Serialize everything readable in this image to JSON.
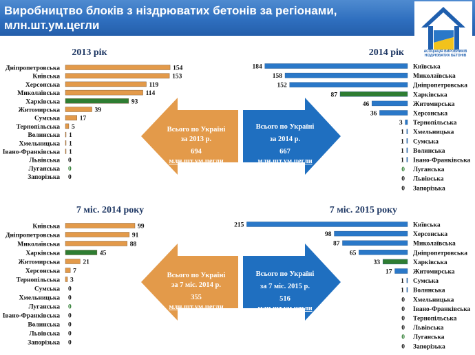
{
  "header": {
    "title": "Виробництво блоків з ніздрюватих бетонів за регіонами, млн.шт.ум.цегли"
  },
  "logo": {
    "text": "АСОЦІАЦІЯ ВИРОБНИКІВ НІЗДРЮВАТИХ БЕТОНІВ"
  },
  "colors": {
    "orange": "#e39a4a",
    "blue": "#2a78c8",
    "green": "#2e7d32",
    "navy": "#1f3864"
  },
  "arrows": {
    "a2013": {
      "line1": "Всього по Україні",
      "line2": "за 2013 р.",
      "value": "694",
      "unit": "млн.шт.ум.цегли"
    },
    "a2014": {
      "line1": "Всього по Україні",
      "line2": "за 2014 р.",
      "value": "667",
      "unit": "млн.шт.ум.цегли"
    },
    "a7m2014": {
      "line1": "Всього по Україні",
      "line2": "за 7 міс. 2014 р.",
      "value": "355",
      "unit": "млн.шт.ум.цегли"
    },
    "a7m2015": {
      "line1": "Всього по Україні",
      "line2": "за 7 міс. 2015 р.",
      "value": "516",
      "unit": "млн.шт.ум.цегли"
    }
  },
  "chart_data": [
    {
      "type": "bar",
      "title": "2013 рік",
      "orientation": "horizontal",
      "color": "#e39a4a",
      "highlight": {
        "Харківська": "#2e7d32"
      },
      "categories": [
        "Дніпропетровська",
        "Київська",
        "Херсонська",
        "Миколаївська",
        "Харківська",
        "Житомирська",
        "Сумська",
        "Тернопільська",
        "Волинська",
        "Хмельницька",
        "Івано-Франківська",
        "Львівська",
        "Луганська",
        "Запорізька"
      ],
      "values": [
        154,
        153,
        119,
        114,
        93,
        39,
        17,
        5,
        1,
        1,
        1,
        0,
        0,
        0
      ],
      "xlim": [
        0,
        160
      ]
    },
    {
      "type": "bar",
      "title": "2014 рік",
      "orientation": "horizontal-reversed",
      "color": "#2a78c8",
      "highlight": {
        "Харківська": "#2e7d32"
      },
      "categories": [
        "Київська",
        "Миколаївська",
        "Дніпропетровська",
        "Харківська",
        "Житомирська",
        "Херсонська",
        "Тернопільська",
        "Хмельницька",
        "Сумська",
        "Волинська",
        "Івано-Франківська",
        "Луганська",
        "Львівська",
        "Запорізька"
      ],
      "values": [
        184,
        158,
        152,
        87,
        46,
        36,
        3,
        1,
        1,
        1,
        1,
        0,
        0,
        0
      ],
      "xlim": [
        0,
        190
      ]
    },
    {
      "type": "bar",
      "title": "7 міс. 2014 року",
      "orientation": "horizontal",
      "color": "#e39a4a",
      "highlight": {
        "Харківська": "#2e7d32"
      },
      "categories": [
        "Київська",
        "Дніпропетровська",
        "Миколаївська",
        "Харківська",
        "Житомирська",
        "Херсонська",
        "Тернопільська",
        "Сумська",
        "Хмельницька",
        "Луганська",
        "Івано-Франківська",
        "Волинська",
        "Львівська",
        "Запорізька"
      ],
      "values": [
        99,
        91,
        88,
        45,
        21,
        7,
        3,
        0,
        0,
        0,
        0,
        0,
        0,
        0
      ],
      "xlim": [
        0,
        100
      ]
    },
    {
      "type": "bar",
      "title": "7 міс. 2015 року",
      "orientation": "horizontal-reversed",
      "color": "#2a78c8",
      "highlight": {
        "Харківська": "#2e7d32"
      },
      "categories": [
        "Київська",
        "Херсонська",
        "Миколаївська",
        "Дніпропетровська",
        "Харківська",
        "Житомирська",
        "Сумська",
        "Волинська",
        "Хмельницька",
        "Івано-Франківська",
        "Тернопільська",
        "Львівська",
        "Луганська",
        "Запорізька"
      ],
      "values": [
        215,
        98,
        87,
        65,
        33,
        17,
        1,
        1,
        0,
        0,
        0,
        0,
        0,
        0
      ],
      "xlim": [
        0,
        220
      ]
    }
  ]
}
